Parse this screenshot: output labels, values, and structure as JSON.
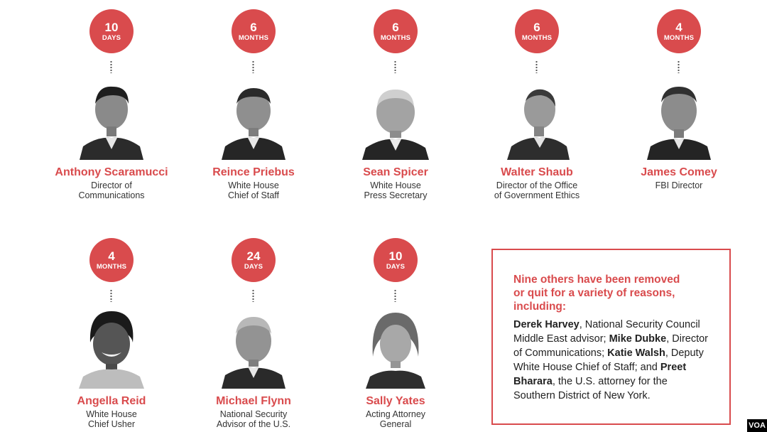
{
  "people": [
    {
      "num": "10",
      "unit": "DAYS",
      "name": "Anthony Scaramucci",
      "title": [
        "Director of",
        "Communications"
      ]
    },
    {
      "num": "6",
      "unit": "MONTHS",
      "name": "Reince Priebus",
      "title": [
        "White House",
        "Chief of Staff"
      ]
    },
    {
      "num": "6",
      "unit": "MONTHS",
      "name": "Sean Spicer",
      "title": [
        "White House",
        "Press Secretary"
      ]
    },
    {
      "num": "6",
      "unit": "MONTHS",
      "name": "Walter Shaub",
      "title": [
        "Director of the Office",
        "of Government Ethics"
      ]
    },
    {
      "num": "4",
      "unit": "MONTHS",
      "name": "James Comey",
      "title": [
        "FBI Director"
      ]
    },
    {
      "num": "4",
      "unit": "MONTHS",
      "name": "Angella Reid",
      "title": [
        "White House",
        "Chief Usher"
      ]
    },
    {
      "num": "24",
      "unit": "DAYS",
      "name": "Michael Flynn",
      "title": [
        "National Security",
        "Advisor of the U.S."
      ]
    },
    {
      "num": "10",
      "unit": "DAYS",
      "name": "Sally Yates",
      "title": [
        "Acting Attorney",
        "General"
      ]
    }
  ],
  "others_box": {
    "heading": [
      "Nine others have been removed",
      "or quit for a variety of reasons,",
      "including:"
    ],
    "items": [
      {
        "name": "Derek Harvey",
        "desc": ", National Security Council Middle East advisor; "
      },
      {
        "name": "Mike Dubke",
        "desc": ", Director of Communications; "
      },
      {
        "name": "Katie Walsh",
        "desc": ", Deputy White House Chief of Staff; and "
      },
      {
        "name": "Preet Bharara",
        "desc": ", the U.S. attorney for the Southern District of New York."
      }
    ]
  },
  "watermark": "VOA",
  "colors": {
    "accent": "#d94b4d",
    "text": "#333333"
  }
}
